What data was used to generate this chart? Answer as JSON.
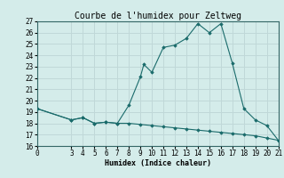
{
  "title": "Courbe de l'humidex pour Zeltweg",
  "xlabel": "Humidex (Indice chaleur)",
  "background_color": "#d4ecea",
  "grid_color": "#c0d8d8",
  "line_color": "#1a6b6b",
  "xlim": [
    0,
    21
  ],
  "ylim": [
    16,
    27
  ],
  "xticks": [
    0,
    3,
    4,
    5,
    6,
    7,
    8,
    9,
    10,
    11,
    12,
    13,
    14,
    15,
    16,
    17,
    18,
    19,
    20,
    21
  ],
  "yticks": [
    16,
    17,
    18,
    19,
    20,
    21,
    22,
    23,
    24,
    25,
    26,
    27
  ],
  "line1_x": [
    0,
    3,
    4,
    5,
    6,
    7,
    8,
    9,
    9.3,
    10,
    11,
    12,
    13,
    14,
    15,
    16,
    17,
    18,
    19,
    20,
    21
  ],
  "line1_y": [
    19.3,
    18.3,
    18.5,
    18.0,
    18.1,
    18.0,
    19.6,
    22.1,
    23.2,
    22.5,
    24.7,
    24.9,
    25.5,
    26.8,
    26.0,
    26.8,
    23.3,
    19.3,
    18.3,
    17.8,
    16.5
  ],
  "line2_x": [
    0,
    3,
    4,
    5,
    6,
    7,
    8,
    9,
    10,
    11,
    12,
    13,
    14,
    15,
    16,
    17,
    18,
    19,
    20,
    21
  ],
  "line2_y": [
    19.3,
    18.3,
    18.5,
    18.0,
    18.1,
    18.0,
    18.0,
    17.9,
    17.8,
    17.7,
    17.6,
    17.5,
    17.4,
    17.3,
    17.2,
    17.1,
    17.0,
    16.9,
    16.7,
    16.5
  ],
  "title_fontsize": 7,
  "axis_fontsize": 6,
  "tick_fontsize": 5.5
}
